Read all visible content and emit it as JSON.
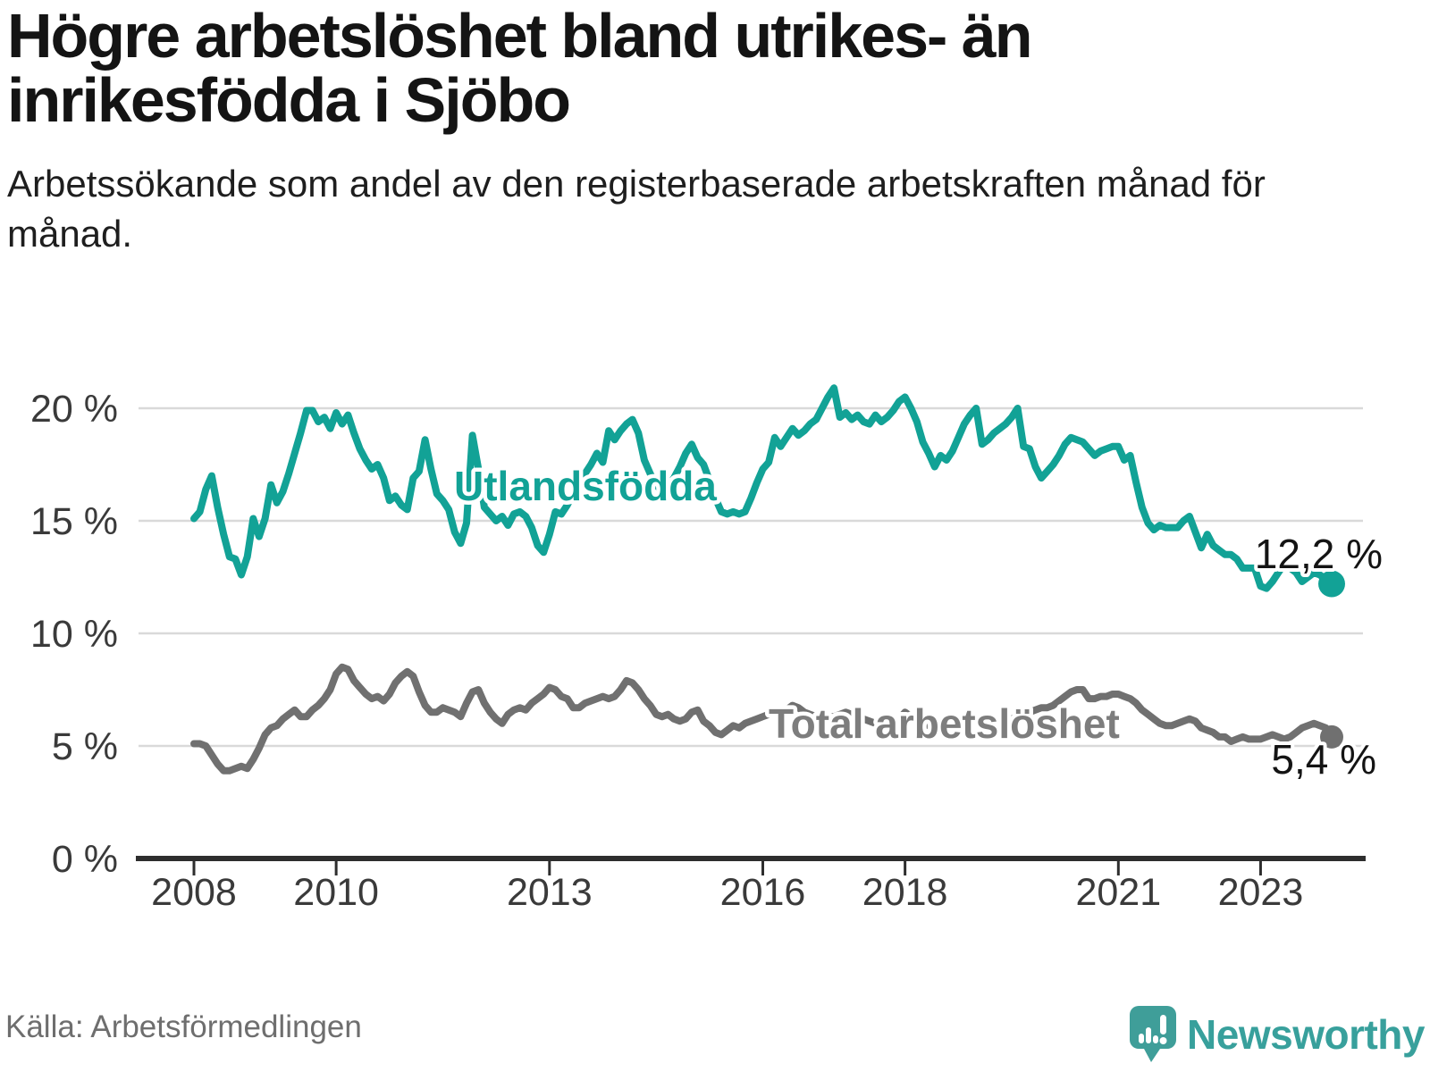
{
  "header": {
    "title": "Högre arbetslöshet bland utrikes- än inrikesfödda i Sjöbo",
    "subtitle": "Arbetssökande som andel av den registerbaserade arbetskraften månad för månad."
  },
  "footer": {
    "source": "Källa: Arbetsförmedlingen",
    "brand": "Newsworthy",
    "brand_icon": "newsworthy-speech-bubble-bar-chart-icon"
  },
  "colors": {
    "foreign_born_line": "#12a296",
    "total_line": "#707070",
    "total_label": "#7d7d7d",
    "axis": "#2e2e2e",
    "grid": "#d9d9d9",
    "tick_text": "#3a3a3a",
    "value_label_text": "#141414",
    "brand_teal": "#38a09c"
  },
  "chart_data": {
    "type": "line",
    "title": "Högre arbetslöshet bland utrikes- än inrikesfödda i Sjöbo",
    "subtitle": "Arbetssökande som andel av den registerbaserade arbetskraften månad för månad.",
    "xlabel": "",
    "ylabel": "",
    "x_start": "2008-01",
    "x_end": "2024-01",
    "frequency": "monthly",
    "ylim": [
      0,
      22
    ],
    "grid": "horizontal",
    "legend_position": "inline-labels",
    "y_ticks": [
      {
        "label": "0 %",
        "value": 0
      },
      {
        "label": "5 %",
        "value": 5
      },
      {
        "label": "10 %",
        "value": 10
      },
      {
        "label": "15 %",
        "value": 15
      },
      {
        "label": "20 %",
        "value": 20
      }
    ],
    "x_ticks": [
      {
        "label": "2008",
        "month_index": 0
      },
      {
        "label": "2010",
        "month_index": 24
      },
      {
        "label": "2013",
        "month_index": 60
      },
      {
        "label": "2016",
        "month_index": 96
      },
      {
        "label": "2018",
        "month_index": 120
      },
      {
        "label": "2021",
        "month_index": 156
      },
      {
        "label": "2023",
        "month_index": 180
      }
    ],
    "series": [
      {
        "name": "Utlandsfödda",
        "color": "#12a296",
        "end_label": "12,2 %",
        "end_value": 12.2,
        "values": [
          15.1,
          15.4,
          16.4,
          17.0,
          15.6,
          14.4,
          13.4,
          13.3,
          12.6,
          13.4,
          15.1,
          14.3,
          15.1,
          16.6,
          15.8,
          16.3,
          17.1,
          18.0,
          18.9,
          19.9,
          19.9,
          19.4,
          19.6,
          19.1,
          19.8,
          19.3,
          19.7,
          18.9,
          18.2,
          17.7,
          17.3,
          17.5,
          16.9,
          15.9,
          16.1,
          15.7,
          15.5,
          16.9,
          17.2,
          18.6,
          17.3,
          16.2,
          15.9,
          15.5,
          14.5,
          14.0,
          14.9,
          18.8,
          17.3,
          15.6,
          15.3,
          15.0,
          15.2,
          14.8,
          15.3,
          15.4,
          15.2,
          14.7,
          13.9,
          13.6,
          14.4,
          15.4,
          15.3,
          15.7,
          16.2,
          16.7,
          17.1,
          17.5,
          18.0,
          17.6,
          19.0,
          18.6,
          19.0,
          19.3,
          19.5,
          18.9,
          17.7,
          17.1,
          16.6,
          16.3,
          16.5,
          16.9,
          17.4,
          18.0,
          18.4,
          17.8,
          17.5,
          16.8,
          16.0,
          15.4,
          15.3,
          15.4,
          15.3,
          15.4,
          16.0,
          16.7,
          17.3,
          17.6,
          18.7,
          18.3,
          18.7,
          19.1,
          18.8,
          19.0,
          19.3,
          19.5,
          20.0,
          20.5,
          20.9,
          19.6,
          19.8,
          19.5,
          19.7,
          19.4,
          19.3,
          19.7,
          19.4,
          19.6,
          19.9,
          20.3,
          20.5,
          20.0,
          19.4,
          18.5,
          18.0,
          17.4,
          17.9,
          17.7,
          18.1,
          18.7,
          19.3,
          19.7,
          20.0,
          18.4,
          18.6,
          18.9,
          19.1,
          19.3,
          19.6,
          20.0,
          18.3,
          18.2,
          17.4,
          16.9,
          17.2,
          17.5,
          17.9,
          18.4,
          18.7,
          18.6,
          18.5,
          18.2,
          17.9,
          18.1,
          18.2,
          18.3,
          18.3,
          17.7,
          17.9,
          16.7,
          15.6,
          14.9,
          14.6,
          14.8,
          14.7,
          14.7,
          14.7,
          15.0,
          15.2,
          14.5,
          13.8,
          14.4,
          13.9,
          13.7,
          13.5,
          13.5,
          13.3,
          12.9,
          12.9,
          12.9,
          12.1,
          12.0,
          12.3,
          12.7,
          13.1,
          12.9,
          12.7,
          12.3,
          12.5,
          12.7,
          12.6,
          12.4,
          12.2
        ]
      },
      {
        "name": "Total arbetslöshet",
        "color": "#707070",
        "end_label": "5,4 %",
        "end_value": 5.4,
        "values": [
          5.1,
          5.1,
          5.0,
          4.6,
          4.2,
          3.9,
          3.9,
          4.0,
          4.1,
          4.0,
          4.4,
          4.9,
          5.5,
          5.8,
          5.9,
          6.2,
          6.4,
          6.6,
          6.3,
          6.3,
          6.6,
          6.8,
          7.1,
          7.5,
          8.2,
          8.5,
          8.4,
          7.9,
          7.6,
          7.3,
          7.1,
          7.2,
          7.0,
          7.3,
          7.8,
          8.1,
          8.3,
          8.1,
          7.4,
          6.8,
          6.5,
          6.5,
          6.7,
          6.6,
          6.5,
          6.3,
          6.9,
          7.4,
          7.5,
          6.9,
          6.5,
          6.2,
          6.0,
          6.4,
          6.6,
          6.7,
          6.6,
          6.9,
          7.1,
          7.3,
          7.6,
          7.5,
          7.2,
          7.1,
          6.7,
          6.7,
          6.9,
          7.0,
          7.1,
          7.2,
          7.1,
          7.2,
          7.5,
          7.9,
          7.8,
          7.5,
          7.1,
          6.8,
          6.4,
          6.3,
          6.4,
          6.2,
          6.1,
          6.2,
          6.5,
          6.6,
          6.1,
          5.9,
          5.6,
          5.5,
          5.7,
          5.9,
          5.8,
          6.0,
          6.1,
          6.2,
          6.3,
          6.4,
          6.5,
          6.5,
          6.6,
          6.8,
          6.7,
          6.5,
          6.4,
          6.3,
          6.4,
          6.3,
          6.3,
          6.4,
          6.5,
          6.4,
          6.3,
          6.2,
          6.1,
          6.0,
          6.1,
          6.2,
          6.1,
          6.2,
          6.5,
          6.3,
          6.2,
          6.0,
          5.9,
          6.0,
          6.1,
          6.2,
          6.1,
          6.1,
          6.2,
          6.1,
          6.2,
          6.2,
          6.3,
          6.2,
          6.2,
          6.1,
          6.2,
          6.3,
          6.4,
          6.5,
          6.6,
          6.7,
          6.7,
          6.8,
          7.0,
          7.2,
          7.4,
          7.5,
          7.5,
          7.1,
          7.1,
          7.2,
          7.2,
          7.3,
          7.3,
          7.2,
          7.1,
          6.9,
          6.6,
          6.4,
          6.2,
          6.0,
          5.9,
          5.9,
          6.0,
          6.1,
          6.2,
          6.1,
          5.8,
          5.7,
          5.6,
          5.4,
          5.4,
          5.2,
          5.3,
          5.4,
          5.3,
          5.3,
          5.3,
          5.4,
          5.5,
          5.4,
          5.3,
          5.4,
          5.6,
          5.8,
          5.9,
          6.0,
          5.9,
          5.8,
          5.4
        ]
      }
    ]
  }
}
